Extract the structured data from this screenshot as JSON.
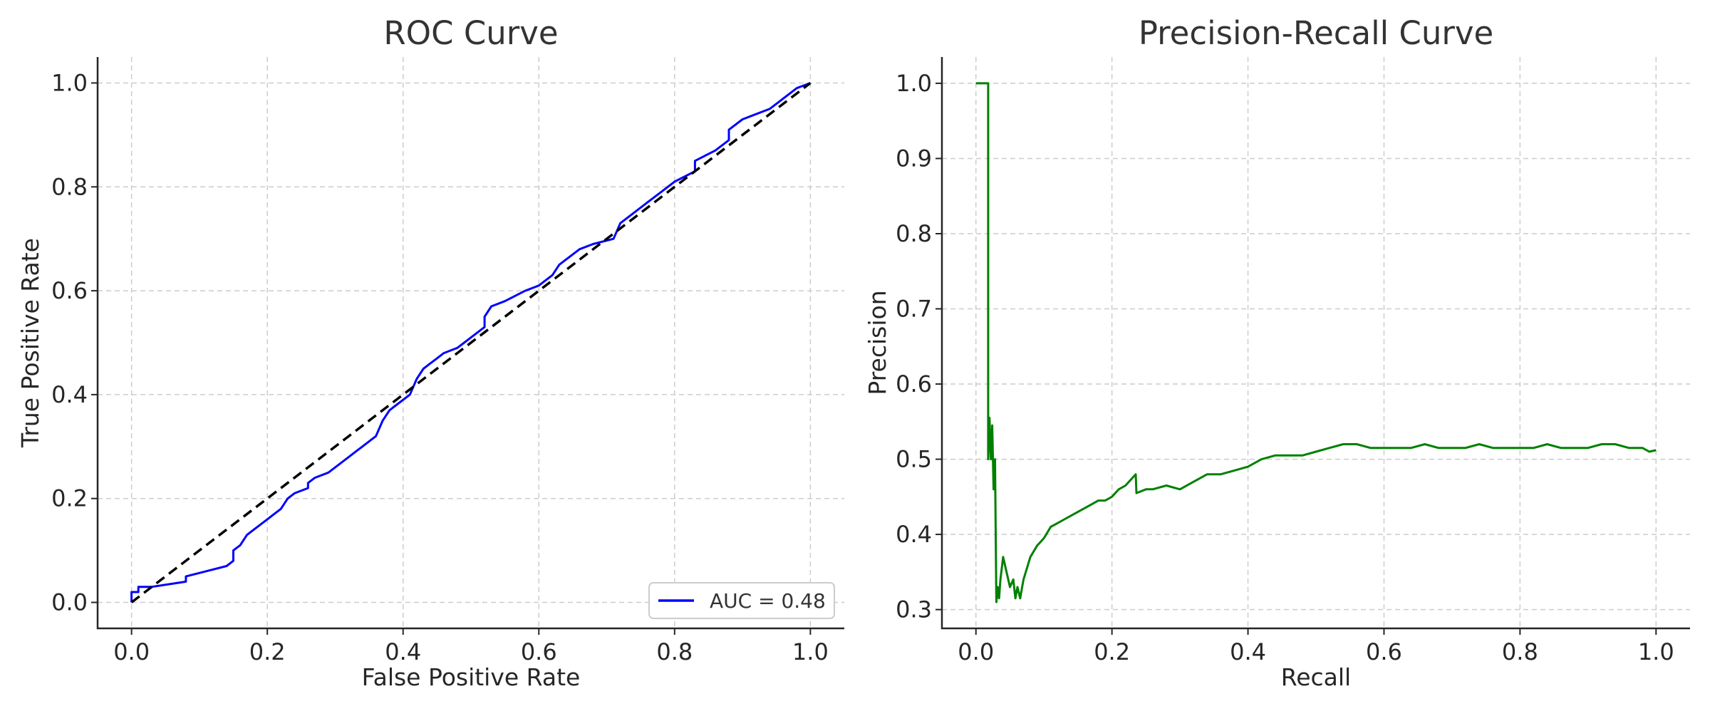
{
  "chart_data": [
    {
      "type": "line",
      "title": "ROC Curve",
      "xlabel": "False Positive Rate",
      "ylabel": "True Positive Rate",
      "xlim": [
        -0.05,
        1.05
      ],
      "ylim": [
        -0.05,
        1.05
      ],
      "xticks": [
        "0.0",
        "0.2",
        "0.4",
        "0.6",
        "0.8",
        "1.0"
      ],
      "yticks": [
        "0.0",
        "0.2",
        "0.4",
        "0.6",
        "0.8",
        "1.0"
      ],
      "grid": true,
      "legend": {
        "position": "lower-right",
        "entries": [
          "AUC = 0.48"
        ]
      },
      "series": [
        {
          "name": "AUC = 0.48",
          "color": "#0000ff",
          "style": "solid",
          "x": [
            0.0,
            0.0,
            0.01,
            0.01,
            0.03,
            0.08,
            0.08,
            0.11,
            0.14,
            0.15,
            0.15,
            0.16,
            0.17,
            0.18,
            0.19,
            0.2,
            0.21,
            0.22,
            0.23,
            0.24,
            0.26,
            0.26,
            0.27,
            0.29,
            0.31,
            0.32,
            0.33,
            0.34,
            0.36,
            0.37,
            0.38,
            0.39,
            0.41,
            0.42,
            0.43,
            0.44,
            0.45,
            0.46,
            0.48,
            0.49,
            0.5,
            0.52,
            0.52,
            0.53,
            0.55,
            0.58,
            0.6,
            0.62,
            0.63,
            0.64,
            0.66,
            0.68,
            0.71,
            0.72,
            0.74,
            0.76,
            0.78,
            0.8,
            0.83,
            0.83,
            0.86,
            0.88,
            0.88,
            0.9,
            0.92,
            0.94,
            0.96,
            0.98,
            1.0
          ],
          "y": [
            0.0,
            0.02,
            0.02,
            0.03,
            0.03,
            0.04,
            0.05,
            0.06,
            0.07,
            0.08,
            0.1,
            0.11,
            0.13,
            0.14,
            0.15,
            0.16,
            0.17,
            0.18,
            0.2,
            0.21,
            0.22,
            0.23,
            0.24,
            0.25,
            0.27,
            0.28,
            0.29,
            0.3,
            0.32,
            0.35,
            0.37,
            0.38,
            0.4,
            0.43,
            0.45,
            0.46,
            0.47,
            0.48,
            0.49,
            0.5,
            0.51,
            0.53,
            0.55,
            0.57,
            0.58,
            0.6,
            0.61,
            0.63,
            0.65,
            0.66,
            0.68,
            0.69,
            0.7,
            0.73,
            0.75,
            0.77,
            0.79,
            0.81,
            0.83,
            0.85,
            0.87,
            0.89,
            0.91,
            0.93,
            0.94,
            0.95,
            0.97,
            0.99,
            1.0
          ]
        },
        {
          "name": "",
          "color": "#000000",
          "style": "dashed",
          "x": [
            0.0,
            1.0
          ],
          "y": [
            0.0,
            1.0
          ]
        }
      ]
    },
    {
      "type": "line",
      "title": "Precision-Recall Curve",
      "xlabel": "Recall",
      "ylabel": "Precision",
      "xlim": [
        -0.05,
        1.05
      ],
      "ylim": [
        0.275,
        1.035
      ],
      "xticks": [
        "0.0",
        "0.2",
        "0.4",
        "0.6",
        "0.8",
        "1.0"
      ],
      "yticks": [
        "0.3",
        "0.4",
        "0.5",
        "0.6",
        "0.7",
        "0.8",
        "0.9",
        "1.0"
      ],
      "grid": true,
      "series": [
        {
          "name": "",
          "color": "#008000",
          "style": "solid",
          "x": [
            0.0,
            0.018,
            0.018,
            0.02,
            0.022,
            0.024,
            0.026,
            0.028,
            0.03,
            0.032,
            0.034,
            0.036,
            0.04,
            0.045,
            0.05,
            0.055,
            0.058,
            0.061,
            0.065,
            0.07,
            0.08,
            0.09,
            0.1,
            0.11,
            0.12,
            0.13,
            0.14,
            0.15,
            0.16,
            0.17,
            0.18,
            0.19,
            0.2,
            0.21,
            0.22,
            0.235,
            0.236,
            0.25,
            0.26,
            0.28,
            0.3,
            0.32,
            0.34,
            0.36,
            0.38,
            0.4,
            0.42,
            0.44,
            0.46,
            0.48,
            0.5,
            0.52,
            0.54,
            0.56,
            0.58,
            0.6,
            0.62,
            0.64,
            0.66,
            0.68,
            0.7,
            0.72,
            0.74,
            0.76,
            0.78,
            0.8,
            0.82,
            0.84,
            0.86,
            0.88,
            0.9,
            0.92,
            0.94,
            0.96,
            0.98,
            0.99,
            1.0
          ],
          "y": [
            1.0,
            1.0,
            0.5,
            0.555,
            0.5,
            0.545,
            0.46,
            0.5,
            0.31,
            0.33,
            0.315,
            0.34,
            0.37,
            0.35,
            0.33,
            0.34,
            0.315,
            0.33,
            0.315,
            0.34,
            0.37,
            0.385,
            0.395,
            0.41,
            0.415,
            0.42,
            0.425,
            0.43,
            0.435,
            0.44,
            0.445,
            0.445,
            0.45,
            0.46,
            0.465,
            0.48,
            0.455,
            0.46,
            0.46,
            0.465,
            0.46,
            0.47,
            0.48,
            0.48,
            0.485,
            0.49,
            0.5,
            0.505,
            0.505,
            0.505,
            0.51,
            0.515,
            0.52,
            0.52,
            0.515,
            0.515,
            0.515,
            0.515,
            0.52,
            0.515,
            0.515,
            0.515,
            0.52,
            0.515,
            0.515,
            0.515,
            0.515,
            0.52,
            0.515,
            0.515,
            0.515,
            0.52,
            0.52,
            0.515,
            0.515,
            0.51,
            0.512
          ]
        }
      ]
    }
  ]
}
